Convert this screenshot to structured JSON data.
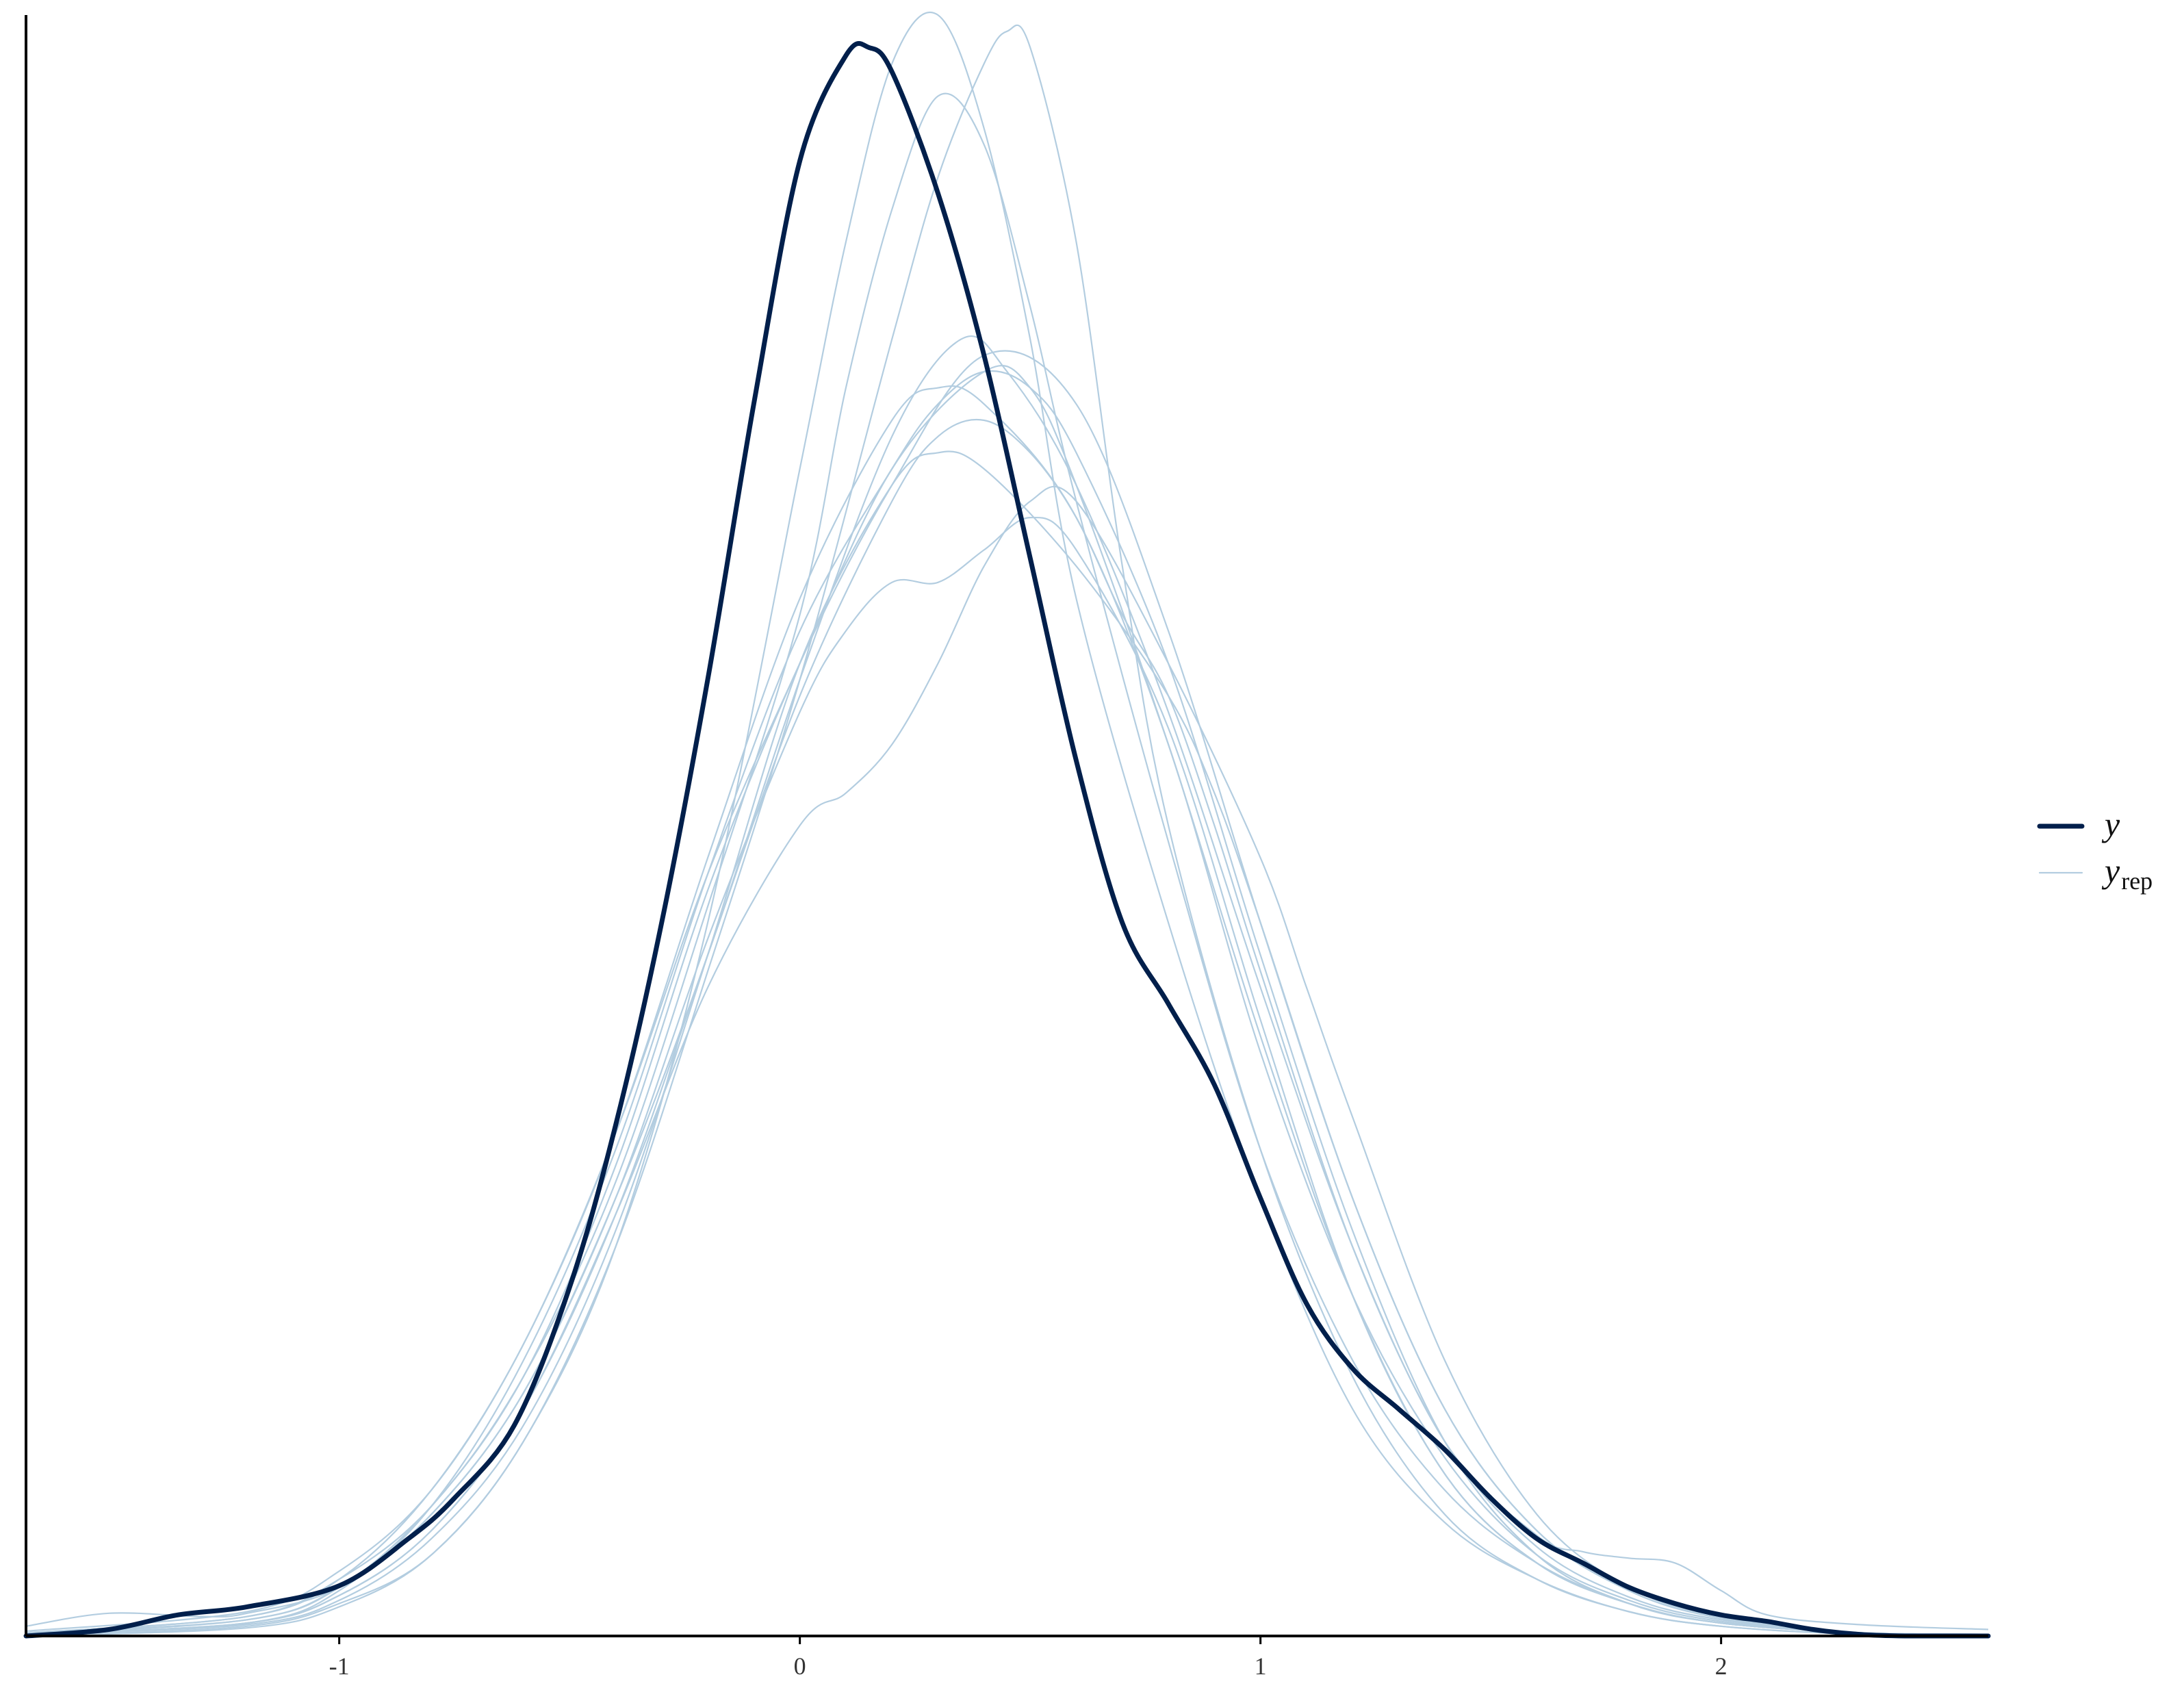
{
  "chart_data": {
    "type": "line",
    "title": "",
    "xlabel": "",
    "ylabel": "",
    "xlim": [
      -1.68,
      2.58
    ],
    "ylim": [
      0,
      1.0
    ],
    "x_ticks": [
      -1,
      0,
      1,
      2
    ],
    "x_tick_labels": [
      "-1",
      "0",
      "1",
      "2"
    ],
    "grid": false,
    "legend_position": "right",
    "legend": [
      {
        "key": "y",
        "label": "y",
        "subscript": "",
        "color": "#011f4b",
        "weight": "thick"
      },
      {
        "key": "yrep",
        "label": "y",
        "subscript": "rep",
        "color": "#b3cde0",
        "weight": "thin"
      }
    ],
    "colors": {
      "y": "#011f4b",
      "yrep": "#b3cde0",
      "axis": "#000000"
    },
    "series": [
      {
        "name": "y",
        "role": "observed",
        "x": [
          -1.68,
          -1.5,
          -1.35,
          -1.2,
          -1.0,
          -0.85,
          -0.75,
          -0.62,
          -0.5,
          -0.4,
          -0.3,
          -0.2,
          -0.1,
          0.0,
          0.1,
          0.15,
          0.2,
          0.3,
          0.4,
          0.5,
          0.6,
          0.7,
          0.8,
          0.9,
          1.0,
          1.1,
          1.2,
          1.3,
          1.4,
          1.5,
          1.6,
          1.7,
          1.8,
          1.9,
          2.0,
          2.1,
          2.2,
          2.3,
          2.4,
          2.58
        ],
        "y": [
          0.0,
          0.004,
          0.013,
          0.018,
          0.031,
          0.06,
          0.085,
          0.13,
          0.215,
          0.315,
          0.44,
          0.59,
          0.76,
          0.91,
          0.975,
          0.98,
          0.965,
          0.89,
          0.79,
          0.665,
          0.54,
          0.44,
          0.39,
          0.34,
          0.27,
          0.205,
          0.165,
          0.14,
          0.115,
          0.085,
          0.06,
          0.045,
          0.03,
          0.02,
          0.013,
          0.009,
          0.004,
          0.001,
          0.0,
          0.0
        ]
      },
      {
        "name": "",
        "role": "replicate",
        "x": [
          -1.68,
          -1.2,
          -1.0,
          -0.8,
          -0.6,
          -0.4,
          -0.2,
          0.0,
          0.1,
          0.2,
          0.3,
          0.4,
          0.5,
          0.6,
          0.8,
          1.0,
          1.2,
          1.4,
          1.6,
          1.8,
          2.0,
          2.3,
          2.58
        ],
        "y": [
          0.0,
          0.006,
          0.02,
          0.05,
          0.12,
          0.24,
          0.44,
          0.72,
          0.86,
          0.97,
          1.0,
          0.93,
          0.8,
          0.64,
          0.44,
          0.27,
          0.14,
          0.07,
          0.035,
          0.015,
          0.006,
          0.001,
          0.0
        ]
      },
      {
        "name": "",
        "role": "replicate",
        "x": [
          -1.68,
          -1.2,
          -1.0,
          -0.8,
          -0.6,
          -0.4,
          -0.2,
          0.0,
          0.2,
          0.3,
          0.4,
          0.45,
          0.5,
          0.6,
          0.7,
          0.8,
          1.0,
          1.2,
          1.4,
          1.6,
          1.8,
          2.0,
          2.3,
          2.58
        ],
        "y": [
          0.0,
          0.005,
          0.018,
          0.05,
          0.12,
          0.24,
          0.41,
          0.59,
          0.8,
          0.9,
          0.97,
          0.99,
          0.98,
          0.86,
          0.66,
          0.5,
          0.3,
          0.16,
          0.075,
          0.035,
          0.015,
          0.006,
          0.001,
          0.0
        ]
      },
      {
        "name": "",
        "role": "replicate",
        "x": [
          -1.68,
          -1.2,
          -1.0,
          -0.8,
          -0.6,
          -0.4,
          -0.2,
          0.0,
          0.1,
          0.2,
          0.3,
          0.4,
          0.5,
          0.6,
          0.8,
          1.0,
          1.2,
          1.4,
          1.6,
          1.8,
          2.0,
          2.3,
          2.58
        ],
        "y": [
          0.002,
          0.012,
          0.035,
          0.08,
          0.16,
          0.28,
          0.45,
          0.63,
          0.77,
          0.88,
          0.95,
          0.92,
          0.82,
          0.7,
          0.49,
          0.3,
          0.17,
          0.09,
          0.045,
          0.02,
          0.008,
          0.002,
          0.001
        ]
      },
      {
        "name": "",
        "role": "replicate",
        "x": [
          -1.68,
          -1.2,
          -1.0,
          -0.8,
          -0.6,
          -0.4,
          -0.2,
          0.0,
          0.2,
          0.4,
          0.5,
          0.6,
          0.8,
          1.0,
          1.2,
          1.4,
          1.6,
          1.8,
          2.0,
          2.3,
          2.58
        ],
        "y": [
          0.003,
          0.015,
          0.04,
          0.09,
          0.18,
          0.31,
          0.47,
          0.6,
          0.72,
          0.78,
          0.77,
          0.71,
          0.55,
          0.37,
          0.21,
          0.1,
          0.045,
          0.02,
          0.008,
          0.002,
          0.001
        ]
      },
      {
        "name": "",
        "role": "replicate",
        "x": [
          -1.68,
          -1.2,
          -1.0,
          -0.8,
          -0.6,
          -0.4,
          -0.2,
          0.0,
          0.2,
          0.3,
          0.4,
          0.6,
          0.8,
          1.0,
          1.2,
          1.4,
          1.6,
          1.8,
          2.0,
          2.3,
          2.58
        ],
        "y": [
          0.002,
          0.012,
          0.035,
          0.09,
          0.18,
          0.31,
          0.48,
          0.64,
          0.75,
          0.77,
          0.76,
          0.69,
          0.55,
          0.36,
          0.21,
          0.11,
          0.05,
          0.022,
          0.009,
          0.002,
          0.001
        ]
      },
      {
        "name": "",
        "role": "replicate",
        "x": [
          -1.68,
          -1.2,
          -1.0,
          -0.8,
          -0.6,
          -0.4,
          -0.2,
          0.0,
          0.2,
          0.3,
          0.4,
          0.5,
          0.6,
          0.7,
          0.8,
          0.9,
          1.0,
          1.2,
          1.4,
          1.6,
          1.8,
          2.0,
          2.3,
          2.58
        ],
        "y": [
          0.001,
          0.008,
          0.025,
          0.065,
          0.14,
          0.26,
          0.42,
          0.58,
          0.7,
          0.74,
          0.75,
          0.73,
          0.69,
          0.63,
          0.58,
          0.5,
          0.41,
          0.24,
          0.12,
          0.055,
          0.024,
          0.01,
          0.002,
          0.001
        ]
      },
      {
        "name": "",
        "role": "replicate",
        "x": [
          -1.68,
          -1.2,
          -1.0,
          -0.8,
          -0.6,
          -0.4,
          -0.2,
          0.0,
          0.2,
          0.3,
          0.4,
          0.6,
          0.8,
          0.9,
          1.0,
          1.2,
          1.4,
          1.6,
          1.8,
          2.0,
          2.3,
          2.58
        ],
        "y": [
          0.001,
          0.007,
          0.022,
          0.06,
          0.13,
          0.25,
          0.42,
          0.6,
          0.71,
          0.73,
          0.72,
          0.66,
          0.58,
          0.52,
          0.44,
          0.27,
          0.14,
          0.065,
          0.028,
          0.011,
          0.002,
          0.001
        ]
      },
      {
        "name": "",
        "role": "replicate",
        "x": [
          -1.68,
          -1.2,
          -1.0,
          -0.8,
          -0.6,
          -0.4,
          -0.2,
          0.0,
          0.1,
          0.2,
          0.3,
          0.4,
          0.5,
          0.6,
          0.8,
          1.0,
          1.2,
          1.4,
          1.6,
          1.8,
          2.0,
          2.3,
          2.58
        ],
        "y": [
          0.002,
          0.01,
          0.03,
          0.075,
          0.15,
          0.27,
          0.43,
          0.57,
          0.62,
          0.65,
          0.65,
          0.67,
          0.69,
          0.67,
          0.56,
          0.38,
          0.21,
          0.1,
          0.045,
          0.02,
          0.008,
          0.002,
          0.001
        ]
      },
      {
        "name": "",
        "role": "replicate",
        "x": [
          -1.68,
          -1.2,
          -1.0,
          -0.8,
          -0.6,
          -0.4,
          -0.2,
          0.0,
          0.1,
          0.2,
          0.3,
          0.4,
          0.5,
          0.6,
          0.8,
          1.0,
          1.1,
          1.2,
          1.4,
          1.6,
          1.8,
          2.0,
          2.3,
          2.58
        ],
        "y": [
          0.001,
          0.008,
          0.025,
          0.065,
          0.14,
          0.26,
          0.4,
          0.5,
          0.52,
          0.55,
          0.6,
          0.66,
          0.7,
          0.7,
          0.6,
          0.48,
          0.4,
          0.32,
          0.17,
          0.075,
          0.03,
          0.012,
          0.002,
          0.001
        ]
      },
      {
        "name": "",
        "role": "replicate",
        "x": [
          -1.68,
          -1.5,
          -1.3,
          -1.2,
          -1.0,
          -0.8,
          -0.6,
          -0.4,
          -0.2,
          0.0,
          0.2,
          0.35,
          0.45,
          0.6,
          0.8,
          1.0,
          1.2,
          1.4,
          1.6,
          1.7,
          1.8,
          1.9,
          2.0,
          2.1,
          2.3,
          2.58
        ],
        "y": [
          0.006,
          0.014,
          0.012,
          0.014,
          0.03,
          0.075,
          0.15,
          0.27,
          0.42,
          0.59,
          0.74,
          0.8,
          0.78,
          0.71,
          0.57,
          0.4,
          0.24,
          0.12,
          0.062,
          0.052,
          0.048,
          0.045,
          0.028,
          0.013,
          0.007,
          0.004
        ]
      },
      {
        "name": "",
        "role": "replicate",
        "x": [
          -1.68,
          -1.2,
          -1.0,
          -0.8,
          -0.6,
          -0.4,
          -0.2,
          0.0,
          0.2,
          0.3,
          0.4,
          0.5,
          0.6,
          0.8,
          1.0,
          1.2,
          1.4,
          1.6,
          1.8,
          2.0,
          2.3,
          2.58
        ],
        "y": [
          0.001,
          0.008,
          0.028,
          0.08,
          0.17,
          0.3,
          0.47,
          0.62,
          0.72,
          0.76,
          0.78,
          0.77,
          0.73,
          0.6,
          0.42,
          0.25,
          0.12,
          0.05,
          0.02,
          0.008,
          0.002,
          0.001
        ]
      },
      {
        "name": "",
        "role": "replicate",
        "x": [
          -1.68,
          -1.2,
          -1.0,
          -0.8,
          -0.6,
          -0.4,
          -0.2,
          0.0,
          0.2,
          0.4,
          0.6,
          0.8,
          1.0,
          1.2,
          1.4,
          1.6,
          1.8,
          2.0,
          2.3,
          2.58
        ],
        "y": [
          0.001,
          0.01,
          0.03,
          0.08,
          0.16,
          0.29,
          0.46,
          0.6,
          0.71,
          0.79,
          0.76,
          0.62,
          0.44,
          0.27,
          0.14,
          0.065,
          0.028,
          0.011,
          0.002,
          0.001
        ]
      }
    ]
  }
}
